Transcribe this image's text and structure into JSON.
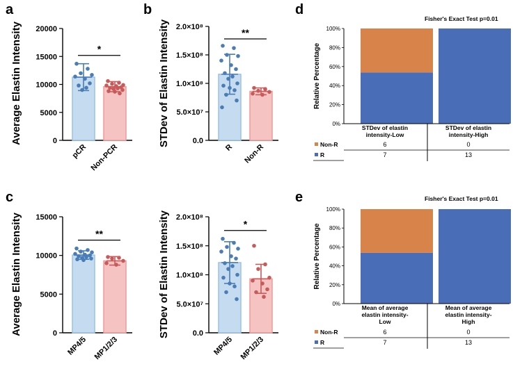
{
  "panels": {
    "a": "a",
    "b": "b",
    "c": "c",
    "d": "d",
    "e": "e"
  },
  "colors": {
    "blue_bar": "#c5dbf0",
    "blue_edge": "#9cc2e5",
    "blue_dot": "#4a7db5",
    "red_bar": "#f6c3c3",
    "red_edge": "#ef9a9a",
    "red_dot": "#c85a5a",
    "nonr": "#d8834a",
    "r": "#4a6db7"
  },
  "chart_data": [
    {
      "id": "a",
      "type": "bar",
      "ylabel": "Average  Elastin Intensity",
      "categories": [
        "pCR",
        "Non-PCR"
      ],
      "ylim": [
        0,
        20000
      ],
      "yticks": [
        0,
        5000,
        10000,
        15000,
        20000
      ],
      "ytick_labels": [
        "0",
        "5000",
        "10000",
        "15000",
        "20000"
      ],
      "series": [
        {
          "name": "pCR",
          "mean": 11300,
          "sd": 2400,
          "points": [
            13700,
            12800,
            12000,
            11700,
            11400,
            11000,
            10200,
            9800,
            9400,
            9000
          ]
        },
        {
          "name": "Non-PCR",
          "mean": 9600,
          "sd": 900,
          "points": [
            10600,
            10300,
            10100,
            9900,
            9800,
            9700,
            9500,
            9400,
            9300,
            9200,
            9000,
            8800,
            8700,
            8400
          ]
        }
      ],
      "significance": "*"
    },
    {
      "id": "b",
      "type": "bar",
      "ylabel": "STDev of Elastin Intensity",
      "categories": [
        "R",
        "Non-R"
      ],
      "ylim": [
        0,
        200000000
      ],
      "yticks": [
        0,
        50000000,
        100000000,
        150000000,
        200000000
      ],
      "ytick_labels": [
        "0.0",
        "5.0×10⁷",
        "1.0×10⁸",
        "1.5×10⁸",
        "2.0×10⁸"
      ],
      "series": [
        {
          "name": "R",
          "mean": 116000000,
          "sd": 35000000,
          "points": [
            166000000,
            162000000,
            150000000,
            148000000,
            140000000,
            132000000,
            125000000,
            118000000,
            112000000,
            108000000,
            100000000,
            96000000,
            92000000,
            88000000,
            80000000,
            70000000,
            58000000
          ]
        },
        {
          "name": "Non-R",
          "mean": 86000000,
          "sd": 6000000,
          "points": [
            92000000,
            90000000,
            87000000,
            85000000,
            82000000,
            80000000
          ]
        }
      ],
      "significance": "**"
    },
    {
      "id": "c1",
      "type": "bar",
      "ylabel": "Average Elastin Intensity",
      "categories": [
        "MP4/5",
        "MP1/2/3"
      ],
      "ylim": [
        0,
        15000
      ],
      "yticks": [
        0,
        5000,
        10000,
        15000
      ],
      "ytick_labels": [
        "0",
        "5000",
        "10000",
        "15000"
      ],
      "series": [
        {
          "name": "MP4/5",
          "mean": 10050,
          "sd": 550,
          "points": [
            10900,
            10700,
            10500,
            10400,
            10200,
            10100,
            10000,
            9900,
            9800,
            9700,
            9600,
            9500,
            9400
          ]
        },
        {
          "name": "MP1/2/3",
          "mean": 9300,
          "sd": 550,
          "points": [
            9800,
            9700,
            9600,
            9300,
            9000,
            8800
          ]
        }
      ],
      "significance": "**"
    },
    {
      "id": "c2",
      "type": "bar",
      "ylabel": "STDev of  Elastin Intensity",
      "categories": [
        "MP4/5",
        "MP1/2/3"
      ],
      "ylim": [
        0,
        200000000
      ],
      "yticks": [
        0,
        50000000,
        100000000,
        150000000,
        200000000
      ],
      "ytick_labels": [
        "0.0",
        "5.0×10⁷",
        "1.0×10⁸",
        "1.5×10⁸",
        "2.0×10⁸"
      ],
      "series": [
        {
          "name": "MP4/5",
          "mean": 121000000,
          "sd": 36000000,
          "points": [
            162000000,
            155000000,
            148000000,
            145000000,
            140000000,
            132000000,
            128000000,
            120000000,
            115000000,
            110000000,
            100000000,
            95000000,
            85000000,
            80000000,
            70000000,
            58000000
          ]
        },
        {
          "name": "MP1/2/3",
          "mean": 93000000,
          "sd": 25000000,
          "points": [
            150000000,
            118000000,
            110000000,
            95000000,
            90000000,
            85000000,
            75000000,
            70000000,
            62000000
          ]
        }
      ],
      "significance": "*"
    },
    {
      "id": "d",
      "type": "bar",
      "stacked": true,
      "title": "Fisher's Exact Test p=0.01",
      "ylabel": "Relative Percentage",
      "yticks": [
        0,
        20,
        40,
        60,
        80,
        100
      ],
      "ytick_labels": [
        "0%",
        "20%",
        "40%",
        "60%",
        "80%",
        "100%"
      ],
      "categories": [
        "STDev of elastin intensity-Low",
        "STDev of elastin intensity-High"
      ],
      "category_lines": [
        [
          "STDev of elastin",
          "intensity-Low"
        ],
        [
          "STDev of elastin",
          "intensity-High"
        ]
      ],
      "series": [
        {
          "name": "Non-R",
          "counts": [
            6,
            0
          ]
        },
        {
          "name": "R",
          "counts": [
            7,
            13
          ]
        }
      ]
    },
    {
      "id": "e",
      "type": "bar",
      "stacked": true,
      "title": "Fisher's Exact Test p=0.01",
      "ylabel": "Relative Percentage",
      "yticks": [
        0,
        20,
        40,
        60,
        80,
        100
      ],
      "ytick_labels": [
        "0%",
        "20%",
        "40%",
        "60%",
        "80%",
        "100%"
      ],
      "categories": [
        "Mean of average elastin intensity-Low",
        "Mean of average elastin intensity-High"
      ],
      "category_lines": [
        [
          "Mean of average",
          "elastin intensity-",
          "Low"
        ],
        [
          "Mean of average",
          "elastin intensity-",
          "High"
        ]
      ],
      "series": [
        {
          "name": "Non-R",
          "counts": [
            6,
            0
          ]
        },
        {
          "name": "R",
          "counts": [
            7,
            13
          ]
        }
      ]
    }
  ]
}
